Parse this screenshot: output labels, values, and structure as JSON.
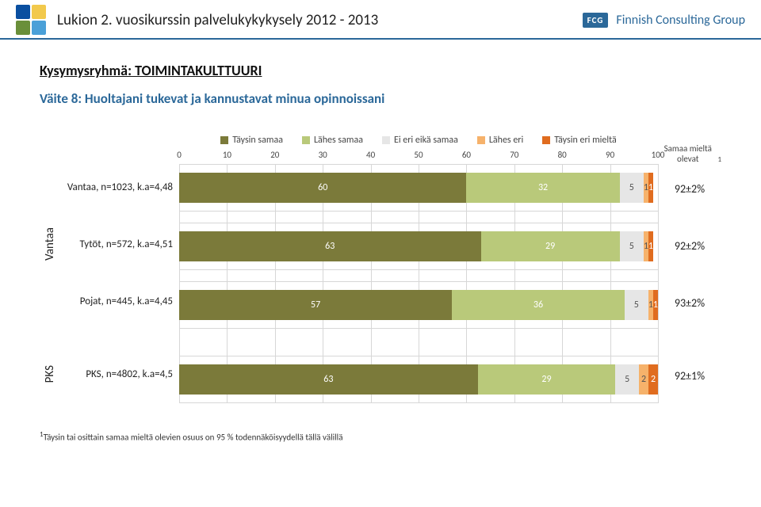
{
  "header": {
    "title": "Lukion 2. vuosikurssin palvelukykykysely 2012 - 2013",
    "brand_box": "FCG",
    "brand_text": "Finnish Consulting Group",
    "brand_color": "#2b6899",
    "underline_color": "#2b6899",
    "crest_colors": [
      [
        "#0a4fa0",
        "#f2c94c"
      ],
      [
        "#6a8f3a",
        "#4aa0d8"
      ]
    ]
  },
  "content": {
    "group_title": "Kysymysryhmä: TOIMINTAKULTTUURI",
    "claim": "Väite 8: Huoltajani tukevat ja kannustavat minua opinnoissani"
  },
  "legend": {
    "items": [
      {
        "label": "Täysin samaa",
        "color": "#7b7a3a"
      },
      {
        "label": "Lähes samaa",
        "color": "#b9c97a"
      },
      {
        "label": "Ei eri eikä samaa",
        "color": "#e6e6e6"
      },
      {
        "label": "Lähes eri",
        "color": "#f6b26b"
      },
      {
        "label": "Täysin eri mieltä",
        "color": "#e06c1f"
      }
    ]
  },
  "axis": {
    "min": 0,
    "max": 100,
    "step": 10,
    "ticks": [
      0,
      10,
      20,
      30,
      40,
      50,
      60,
      70,
      80,
      90,
      100
    ]
  },
  "right_header": "Samaa mieltä olevat",
  "groups": [
    {
      "side_label": null,
      "rows": [
        {
          "label": "Vantaa, n=1023, k.a=4,48",
          "segments": [
            60,
            32,
            5,
            1,
            1
          ],
          "result": "92±2%"
        }
      ]
    },
    {
      "side_label": "Vantaa",
      "rows": [
        {
          "label": "Tytöt, n=572, k.a=4,51",
          "segments": [
            63,
            29,
            5,
            1,
            1
          ],
          "result": "92±2%"
        }
      ]
    },
    {
      "side_label": null,
      "rows": [
        {
          "label": "Pojat, n=445, k.a=4,45",
          "segments": [
            57,
            36,
            5,
            1,
            1
          ],
          "result": "93±2%"
        }
      ]
    },
    {
      "side_label": "PKS",
      "rows": [
        {
          "label": "PKS, n=4802, k.a=4,5",
          "segments": [
            63,
            29,
            5,
            2,
            2
          ],
          "result": "92±1%"
        }
      ]
    }
  ],
  "row_gap_after": [
    false,
    false,
    true,
    false
  ],
  "footnote": "Täysin tai osittain samaa mieltä olevien osuus on 95 % todennäköisyydellä tällä välillä",
  "footnote_sup": "1",
  "seg_text_dark": "#555555"
}
